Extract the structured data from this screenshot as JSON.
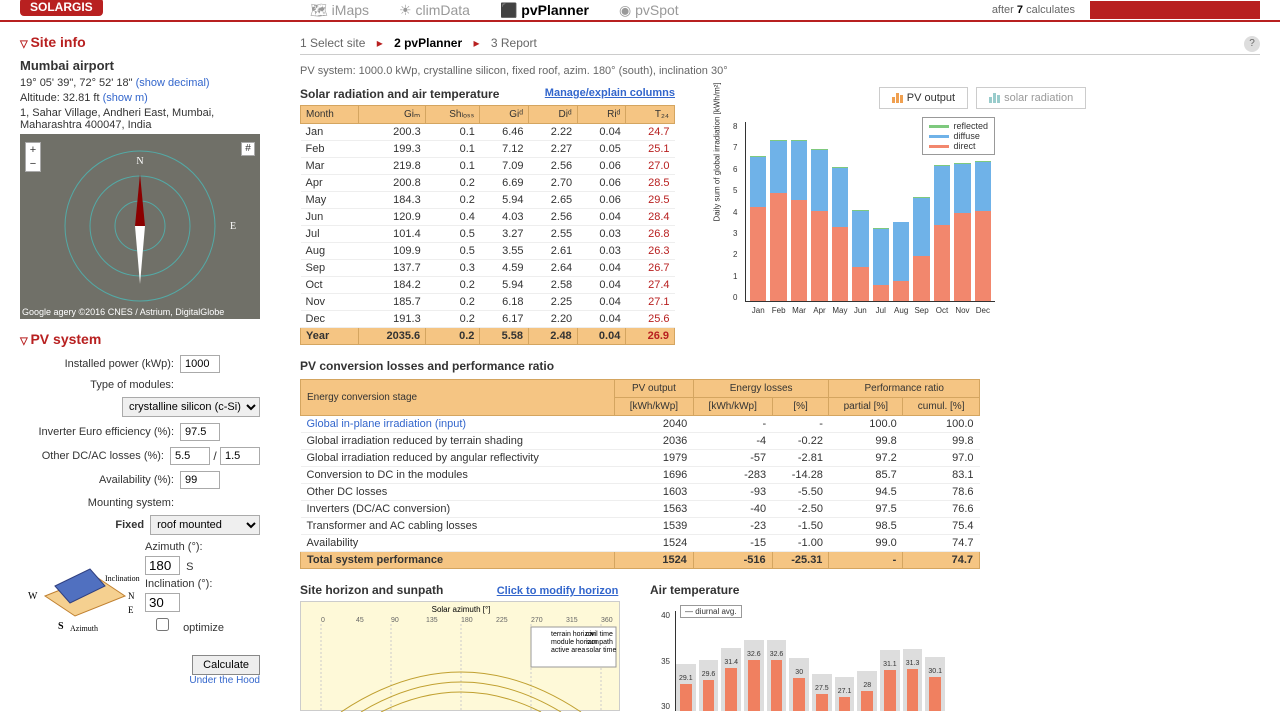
{
  "nav": {
    "logo": "SOLARGIS",
    "items": [
      "iMaps",
      "climData",
      "pvPlanner",
      "pvSpot"
    ],
    "active_index": 2,
    "right_text": "after",
    "right_count": "7",
    "right_suffix": "calculates"
  },
  "breadcrumb": {
    "items": [
      "1 Select site",
      "2 pvPlanner",
      "3 Report"
    ],
    "current_index": 1
  },
  "site": {
    "section": "Site info",
    "name": "Mumbai airport",
    "coords": "19° 05' 39\", 72° 52' 18\"",
    "coords_link": "(show decimal)",
    "altitude": "Altitude: 32.81 ft",
    "altitude_link": "(show m)",
    "address": "1, Sahar Village, Andheri East, Mumbai, Maharashtra 400047, India",
    "map_attr": "Google  agery ©2016 CNES / Astrium, DigitalGlobe"
  },
  "pvsys": {
    "section": "PV system",
    "installed_label": "Installed power (kWp):",
    "installed": "1000",
    "modules_label": "Type of modules:",
    "modules": "crystalline silicon (c-Si)",
    "inverter_label": "Inverter Euro efficiency (%):",
    "inverter": "97.5",
    "dcac_label": "Other DC/AC losses (%):",
    "dc": "5.5",
    "ac": "1.5",
    "avail_label": "Availability (%):",
    "avail": "99",
    "mount_label": "Mounting system:",
    "mount_fixed": "Fixed",
    "mount_sel": "roof mounted",
    "azimuth_label": "Azimuth (°):",
    "azimuth": "180",
    "azimuth_dir": "S",
    "incl_label": "Inclination (°):",
    "incl": "30",
    "optimize": "optimize",
    "calc": "Calculate",
    "uth": "Under the Hood"
  },
  "pv_summary": "PV system: 1000.0 kWp, crystalline silicon, fixed roof, azim. 180° (south), inclination 30°",
  "solar_table": {
    "title": "Solar radiation and air temperature",
    "manage": "Manage/explain columns",
    "headers": [
      "Month",
      "Giₘ",
      "Shₗₒₛₛ",
      "Giᵈ",
      "Diᵈ",
      "Riᵈ",
      "T₂₄"
    ],
    "rows": [
      [
        "Jan",
        "200.3",
        "0.1",
        "6.46",
        "2.22",
        "0.04",
        "24.7"
      ],
      [
        "Feb",
        "199.3",
        "0.1",
        "7.12",
        "2.27",
        "0.05",
        "25.1"
      ],
      [
        "Mar",
        "219.8",
        "0.1",
        "7.09",
        "2.56",
        "0.06",
        "27.0"
      ],
      [
        "Apr",
        "200.8",
        "0.2",
        "6.69",
        "2.70",
        "0.06",
        "28.5"
      ],
      [
        "May",
        "184.3",
        "0.2",
        "5.94",
        "2.65",
        "0.06",
        "29.5"
      ],
      [
        "Jun",
        "120.9",
        "0.4",
        "4.03",
        "2.56",
        "0.04",
        "28.4"
      ],
      [
        "Jul",
        "101.4",
        "0.5",
        "3.27",
        "2.55",
        "0.03",
        "26.8"
      ],
      [
        "Aug",
        "109.9",
        "0.5",
        "3.55",
        "2.61",
        "0.03",
        "26.3"
      ],
      [
        "Sep",
        "137.7",
        "0.3",
        "4.59",
        "2.64",
        "0.04",
        "26.7"
      ],
      [
        "Oct",
        "184.2",
        "0.2",
        "5.94",
        "2.58",
        "0.04",
        "27.4"
      ],
      [
        "Nov",
        "185.7",
        "0.2",
        "6.18",
        "2.25",
        "0.04",
        "27.1"
      ],
      [
        "Dec",
        "191.3",
        "0.2",
        "6.17",
        "2.20",
        "0.04",
        "25.6"
      ]
    ],
    "year": [
      "Year",
      "2035.6",
      "0.2",
      "5.58",
      "2.48",
      "0.04",
      "26.9"
    ]
  },
  "chart": {
    "tabs": [
      "PV output",
      "solar radiation"
    ],
    "legend": [
      {
        "label": "reflected",
        "color": "#7ec97e"
      },
      {
        "label": "diffuse",
        "color": "#6fb2e8"
      },
      {
        "label": "direct",
        "color": "#f2876d"
      }
    ],
    "ylabel": "Daily sum of global irradiation [kWh/m²]",
    "ymax": 8,
    "months": [
      "Jan",
      "Feb",
      "Mar",
      "Apr",
      "May",
      "Jun",
      "Jul",
      "Aug",
      "Sep",
      "Oct",
      "Nov",
      "Dec"
    ],
    "direct": [
      4.2,
      4.8,
      4.5,
      4.0,
      3.3,
      1.5,
      0.7,
      0.9,
      2.0,
      3.4,
      3.9,
      4.0
    ],
    "diffuse": [
      2.2,
      2.3,
      2.6,
      2.7,
      2.6,
      2.5,
      2.5,
      2.6,
      2.6,
      2.6,
      2.2,
      2.2
    ],
    "reflected": [
      0.04,
      0.05,
      0.06,
      0.06,
      0.06,
      0.04,
      0.03,
      0.03,
      0.04,
      0.04,
      0.04,
      0.04
    ]
  },
  "perf": {
    "title": "PV conversion losses and performance ratio",
    "h1": "Energy conversion stage",
    "h2": "PV output",
    "h2u": "[kWh/kWp]",
    "h3": "Energy losses",
    "h3u1": "[kWh/kWp]",
    "h3u2": "[%]",
    "h4": "Performance ratio",
    "h4u1": "partial [%]",
    "h4u2": "cumul. [%]",
    "rows": [
      {
        "s": "Global in-plane irradiation (input)",
        "link": true,
        "o": "2040",
        "l1": "-",
        "l2": "-",
        "p": "100.0",
        "c": "100.0"
      },
      {
        "s": "Global irradiation reduced by terrain shading",
        "o": "2036",
        "l1": "-4",
        "l2": "-0.22",
        "p": "99.8",
        "c": "99.8"
      },
      {
        "s": "Global irradiation reduced by angular reflectivity",
        "o": "1979",
        "l1": "-57",
        "l2": "-2.81",
        "p": "97.2",
        "c": "97.0"
      },
      {
        "s": "Conversion to DC in the modules",
        "o": "1696",
        "l1": "-283",
        "l2": "-14.28",
        "p": "85.7",
        "c": "83.1"
      },
      {
        "s": "Other DC losses",
        "o": "1603",
        "l1": "-93",
        "l2": "-5.50",
        "p": "94.5",
        "c": "78.6"
      },
      {
        "s": "Inverters (DC/AC conversion)",
        "o": "1563",
        "l1": "-40",
        "l2": "-2.50",
        "p": "97.5",
        "c": "76.6"
      },
      {
        "s": "Transformer and AC cabling losses",
        "o": "1539",
        "l1": "-23",
        "l2": "-1.50",
        "p": "98.5",
        "c": "75.4"
      },
      {
        "s": "Availability",
        "o": "1524",
        "l1": "-15",
        "l2": "-1.00",
        "p": "99.0",
        "c": "74.7"
      }
    ],
    "total": {
      "s": "Total system performance",
      "o": "1524",
      "l1": "-516",
      "l2": "-25.31",
      "p": "-",
      "c": "74.7"
    }
  },
  "bottom": {
    "sunpath_title": "Site horizon and sunpath",
    "sunpath_link": "Click to modify horizon",
    "airtemp_title": "Air temperature",
    "airtemp_legend": "diurnal avg.",
    "temps": [
      29.1,
      29.6,
      31.4,
      32.6,
      32.6,
      30.0,
      27.5,
      27.1,
      28.0,
      31.1,
      31.3,
      30.1
    ],
    "temp_max": 40
  }
}
